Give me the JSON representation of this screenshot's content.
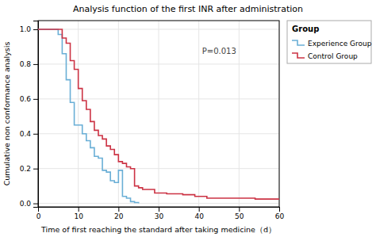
{
  "chart_data": {
    "type": "step",
    "title": "Analysis function of the first INR after administration",
    "x_label": "Time of first reaching the standard after taking medicine（d）",
    "y_label": "Cumulative non conformance analysis",
    "annotations": [
      "P=0.013"
    ],
    "legend_title": "Group",
    "legend": "right",
    "grid": true,
    "xlim": [
      0,
      60
    ],
    "ylim": [
      -0.02,
      1.05
    ],
    "xticks": [
      0,
      10,
      20,
      30,
      40,
      50,
      60
    ],
    "yticks": [
      {
        "value": 0,
        "label": "0.0"
      },
      0.2,
      0.4,
      0.6,
      0.8,
      {
        "value": 1,
        "label": "1.0"
      }
    ],
    "series": [
      {
        "name": "Experience Group",
        "color": "#6aafd6",
        "x": [
          0,
          3,
          5,
          6,
          7,
          8,
          9,
          11,
          12,
          13,
          14,
          15,
          16,
          17,
          18,
          19,
          20,
          21,
          22,
          23,
          24,
          25
        ],
        "values": [
          1.0,
          1.0,
          0.97,
          0.86,
          0.71,
          0.58,
          0.45,
          0.4,
          0.36,
          0.32,
          0.27,
          0.26,
          0.19,
          0.18,
          0.13,
          0.12,
          0.19,
          0.04,
          0.03,
          0.01,
          0.005,
          0.0
        ]
      },
      {
        "name": "Control Group",
        "color": "#cc3344",
        "x": [
          0,
          5,
          6,
          7,
          8,
          9,
          10,
          11,
          12,
          13,
          14,
          15,
          16,
          17,
          18,
          19,
          20,
          21,
          22,
          23,
          24,
          25,
          26,
          27,
          29,
          32,
          36,
          39,
          42,
          54,
          60
        ],
        "values": [
          1.0,
          1.0,
          0.95,
          0.92,
          0.82,
          0.77,
          0.66,
          0.59,
          0.54,
          0.47,
          0.42,
          0.39,
          0.37,
          0.33,
          0.31,
          0.28,
          0.24,
          0.23,
          0.21,
          0.2,
          0.1,
          0.09,
          0.08,
          0.08,
          0.06,
          0.055,
          0.05,
          0.04,
          0.03,
          0.025,
          0.025
        ]
      }
    ]
  }
}
